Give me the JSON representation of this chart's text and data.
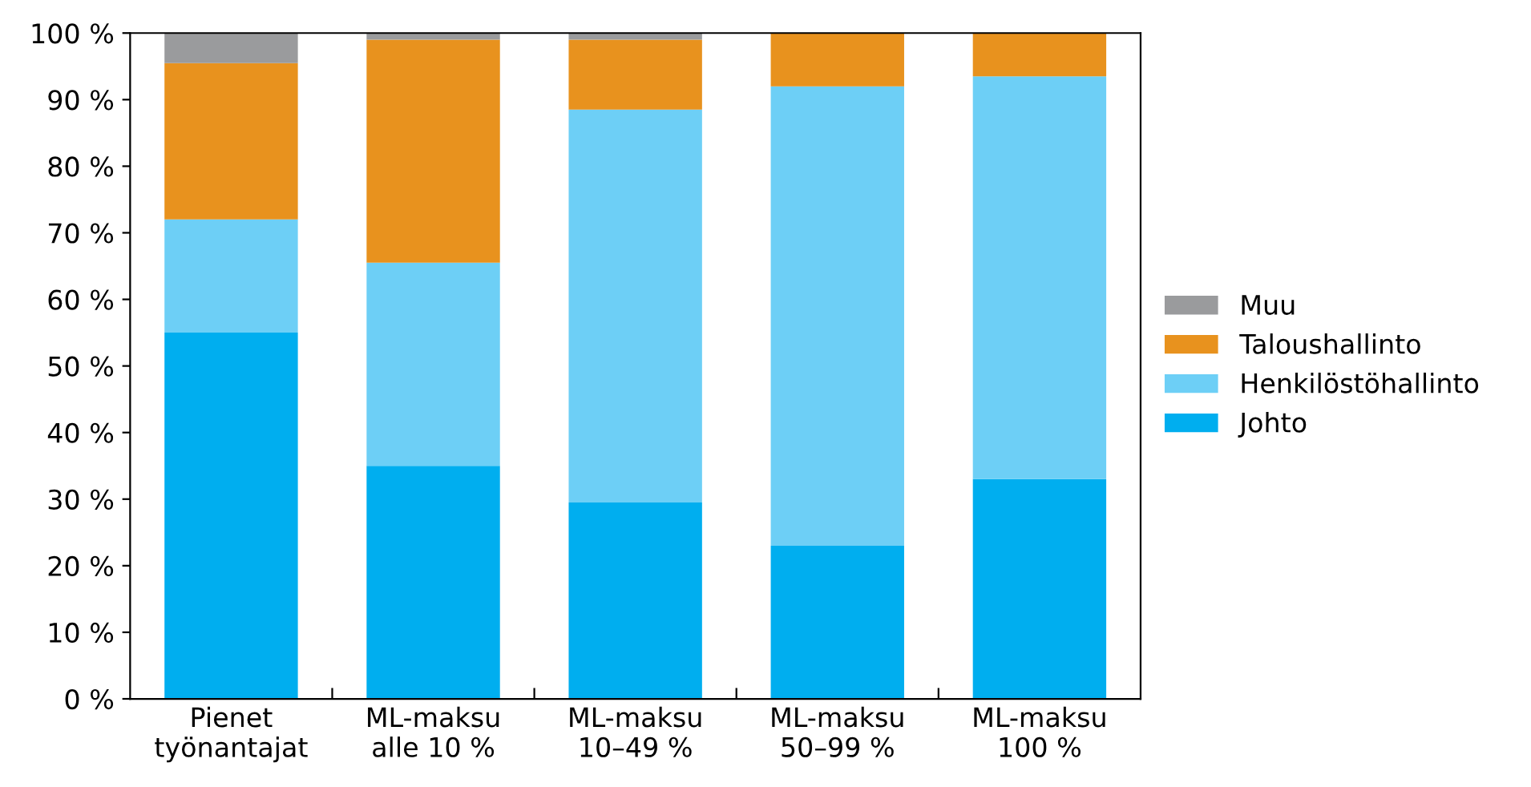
{
  "chart_data": {
    "type": "bar",
    "stacked": true,
    "categories": [
      "Pienet\ntyönantajat",
      "ML-maksu\nalle 10 %",
      "ML-maksu\n10–49 %",
      "ML-maksu\n50–99 %",
      "ML-maksu\n100 %"
    ],
    "series": [
      {
        "name": "Johto",
        "color": "#00aeef",
        "values": [
          55,
          35,
          29.5,
          23,
          33
        ]
      },
      {
        "name": "Henkilöstöhallinto",
        "color": "#6dcff6",
        "values": [
          17,
          30.5,
          59,
          69,
          60.5
        ]
      },
      {
        "name": "Taloushallinto",
        "color": "#e8921e",
        "values": [
          23.5,
          33.5,
          10.5,
          8,
          6.5
        ]
      },
      {
        "name": "Muu",
        "color": "#9a9b9d",
        "values": [
          4.5,
          1,
          1,
          0,
          0
        ]
      }
    ],
    "ylim": [
      0,
      100
    ],
    "yticks": [
      {
        "value": 0,
        "label": "0 %"
      },
      {
        "value": 10,
        "label": "10 %"
      },
      {
        "value": 20,
        "label": "20 %"
      },
      {
        "value": 30,
        "label": "30 %"
      },
      {
        "value": 40,
        "label": "40 %"
      },
      {
        "value": 50,
        "label": "50 %"
      },
      {
        "value": 60,
        "label": "60 %"
      },
      {
        "value": 70,
        "label": "70 %"
      },
      {
        "value": 80,
        "label": "80 %"
      },
      {
        "value": 90,
        "label": "90 %"
      },
      {
        "value": 100,
        "label": "100 %"
      }
    ],
    "grid": false,
    "legend": "right"
  }
}
